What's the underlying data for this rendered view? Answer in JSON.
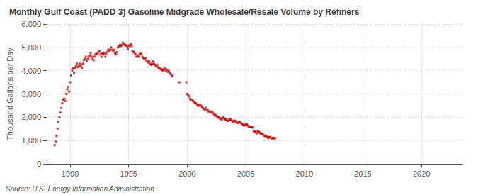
{
  "chart_data": {
    "type": "scatter",
    "title": "Monthly Gulf Coast (PADD 3) Gasoline Midgrade Wholesale/Resale Volume by Refiners",
    "ylabel": "Thousand Gallons per Day",
    "annotations": [
      "Source: U.S. Energy Information Administration"
    ],
    "color": "#cc0000",
    "marker": "square",
    "grid": true,
    "xlim": [
      1988.0,
      2023.5
    ],
    "xticks": [
      1990,
      1995,
      2000,
      2005,
      2010,
      2015,
      2020
    ],
    "ylim": [
      0,
      6000
    ],
    "yticks": [
      0,
      {
        "value": 1000,
        "label": "1,000"
      },
      {
        "value": 2000,
        "label": "2,000"
      },
      {
        "value": 3000,
        "label": "3,000"
      },
      {
        "value": 4000,
        "label": "4,000"
      },
      {
        "value": 5000,
        "label": "5,000"
      },
      {
        "value": 6000,
        "label": "6,000"
      }
    ],
    "x": [
      1988.67,
      1988.75,
      1988.83,
      1988.92,
      1989.0,
      1989.08,
      1989.17,
      1989.25,
      1989.33,
      1989.42,
      1989.5,
      1989.58,
      1989.67,
      1989.75,
      1989.83,
      1989.92,
      1990.0,
      1990.08,
      1990.17,
      1990.25,
      1990.33,
      1990.42,
      1990.5,
      1990.58,
      1990.67,
      1990.75,
      1990.83,
      1990.92,
      1991.0,
      1991.08,
      1991.17,
      1991.25,
      1991.33,
      1991.42,
      1991.5,
      1991.58,
      1991.67,
      1991.75,
      1991.83,
      1991.92,
      1992.0,
      1992.08,
      1992.17,
      1992.25,
      1992.33,
      1992.42,
      1992.5,
      1992.58,
      1992.67,
      1992.75,
      1992.83,
      1992.92,
      1993.0,
      1993.08,
      1993.17,
      1993.25,
      1993.33,
      1993.42,
      1993.5,
      1993.58,
      1993.67,
      1993.75,
      1993.83,
      1993.92,
      1994.0,
      1994.08,
      1994.17,
      1994.25,
      1994.33,
      1994.42,
      1994.5,
      1994.58,
      1994.67,
      1994.75,
      1994.83,
      1994.92,
      1995.0,
      1995.08,
      1995.17,
      1995.25,
      1995.33,
      1995.42,
      1995.5,
      1995.58,
      1995.67,
      1995.75,
      1995.83,
      1995.92,
      1996.0,
      1996.08,
      1996.17,
      1996.25,
      1996.33,
      1996.42,
      1996.5,
      1996.58,
      1996.67,
      1996.75,
      1996.83,
      1996.92,
      1997.0,
      1997.08,
      1997.17,
      1997.25,
      1997.33,
      1997.42,
      1997.5,
      1997.58,
      1997.67,
      1997.75,
      1997.83,
      1997.92,
      1998.0,
      1998.08,
      1998.17,
      1998.25,
      1998.33,
      1998.42,
      1998.5,
      1998.58,
      1998.67,
      1998.75,
      1999.33,
      1999.92,
      2000.0,
      2000.08,
      2000.17,
      2000.25,
      2000.33,
      2000.42,
      2000.5,
      2000.58,
      2000.67,
      2000.75,
      2000.83,
      2000.92,
      2001.0,
      2001.08,
      2001.17,
      2001.25,
      2001.33,
      2001.42,
      2001.5,
      2001.58,
      2001.67,
      2001.75,
      2001.83,
      2001.92,
      2002.0,
      2002.08,
      2002.17,
      2002.25,
      2002.33,
      2002.42,
      2002.5,
      2002.58,
      2002.67,
      2002.75,
      2002.83,
      2002.92,
      2003.0,
      2003.08,
      2003.17,
      2003.25,
      2003.33,
      2003.42,
      2003.5,
      2003.58,
      2003.67,
      2003.75,
      2003.83,
      2003.92,
      2004.0,
      2004.08,
      2004.17,
      2004.25,
      2004.33,
      2004.42,
      2004.5,
      2004.58,
      2004.67,
      2004.75,
      2004.83,
      2004.92,
      2005.0,
      2005.08,
      2005.17,
      2005.25,
      2005.33,
      2005.42,
      2005.5,
      2005.58,
      2005.67,
      2005.75,
      2005.83,
      2005.92,
      2006.0,
      2006.08,
      2006.17,
      2006.25,
      2006.33,
      2006.42,
      2006.5,
      2006.58,
      2006.67,
      2006.75,
      2006.83,
      2006.92,
      2007.0,
      2007.08,
      2007.17,
      2007.25,
      2007.33,
      2007.42,
      2007.5
    ],
    "values": [
      800,
      950,
      1200,
      1500,
      1800,
      2000,
      2200,
      2400,
      2600,
      2750,
      2800,
      2700,
      3000,
      3200,
      3300,
      3100,
      3500,
      3800,
      4000,
      4100,
      3900,
      4100,
      4200,
      4300,
      4150,
      4200,
      4300,
      4200,
      4100,
      4300,
      4450,
      4500,
      4600,
      4400,
      4500,
      4600,
      4650,
      4750,
      4600,
      4500,
      4450,
      4600,
      4700,
      4750,
      4700,
      4800,
      4850,
      4700,
      4600,
      4750,
      4700,
      4750,
      4600,
      4700,
      4800,
      4900,
      4850,
      4900,
      5000,
      4900,
      4850,
      4900,
      4750,
      4700,
      4800,
      5000,
      5050,
      5100,
      5050,
      5100,
      5200,
      5150,
      5100,
      5100,
      5050,
      4950,
      5050,
      5100,
      5150,
      5050,
      4850,
      4800,
      4750,
      4700,
      4600,
      4650,
      4600,
      4700,
      4750,
      4700,
      4600,
      4550,
      4500,
      4550,
      4450,
      4400,
      4350,
      4400,
      4300,
      4250,
      4300,
      4400,
      4300,
      4250,
      4200,
      4250,
      4150,
      4100,
      4100,
      4050,
      4050,
      4000,
      4050,
      4100,
      4000,
      4050,
      3950,
      4000,
      3900,
      3850,
      3750,
      3800,
      3500,
      3500,
      3000,
      2950,
      2900,
      2800,
      2750,
      2750,
      2700,
      2650,
      2600,
      2600,
      2550,
      2500,
      2500,
      2550,
      2500,
      2450,
      2400,
      2350,
      2350,
      2400,
      2300,
      2300,
      2250,
      2200,
      2200,
      2250,
      2200,
      2150,
      2100,
      2100,
      2050,
      2000,
      2000,
      1950,
      1950,
      1900,
      1950,
      2000,
      1950,
      1900,
      1900,
      1850,
      1850,
      1900,
      1900,
      1900,
      1850,
      1800,
      1850,
      1850,
      1800,
      1750,
      1750,
      1800,
      1800,
      1750,
      1700,
      1700,
      1650,
      1650,
      1700,
      1700,
      1650,
      1600,
      1600,
      1600,
      1600,
      1550,
      1400,
      1400,
      1350,
      1300,
      1400,
      1400,
      1350,
      1300,
      1300,
      1300,
      1250,
      1200,
      1200,
      1200,
      1150,
      1100,
      1150,
      1150,
      1100,
      1100,
      1100,
      1100,
      1100
    ]
  }
}
